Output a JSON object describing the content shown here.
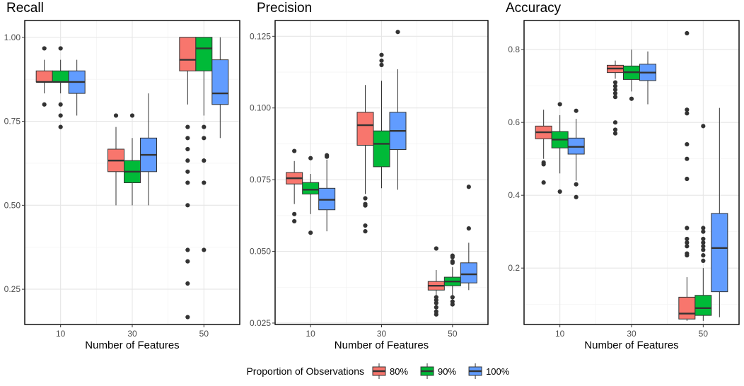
{
  "chart_data": [
    {
      "type": "box",
      "title": "Recall",
      "xlabel": "Number of Features",
      "ylabel": "",
      "categories": [
        "10",
        "30",
        "50"
      ],
      "ylim": [
        0.145,
        1.05
      ],
      "yticks": [
        0.25,
        0.5,
        0.75,
        1.0
      ],
      "ytick_labels": [
        "0.25",
        "0.50",
        "0.75",
        "1.00"
      ],
      "groups": [
        [
          {
            "series": "80%",
            "lower": 0.833,
            "q1": 0.867,
            "median": 0.867,
            "q3": 0.9,
            "upper": 0.933,
            "outliers": [
              0.967,
              0.8
            ]
          },
          {
            "series": "90%",
            "lower": 0.833,
            "q1": 0.867,
            "median": 0.867,
            "q3": 0.9,
            "upper": 0.933,
            "outliers": [
              0.967,
              0.8,
              0.767,
              0.733
            ]
          },
          {
            "series": "100%",
            "lower": 0.767,
            "q1": 0.833,
            "median": 0.867,
            "q3": 0.9,
            "upper": 0.933,
            "outliers": []
          }
        ],
        [
          {
            "series": "80%",
            "lower": 0.5,
            "q1": 0.6,
            "median": 0.633,
            "q3": 0.667,
            "upper": 0.733,
            "outliers": [
              0.767
            ]
          },
          {
            "series": "90%",
            "lower": 0.5,
            "q1": 0.567,
            "median": 0.6,
            "q3": 0.633,
            "upper": 0.7,
            "outliers": [
              0.767
            ]
          },
          {
            "series": "100%",
            "lower": 0.5,
            "q1": 0.6,
            "median": 0.65,
            "q3": 0.7,
            "upper": 0.833,
            "outliers": []
          }
        ],
        [
          {
            "series": "80%",
            "lower": 0.8,
            "q1": 0.9,
            "median": 0.933,
            "q3": 1.0,
            "upper": 1.0,
            "outliers": [
              0.733,
              0.7,
              0.667,
              0.633,
              0.6,
              0.567,
              0.5,
              0.367,
              0.333,
              0.267,
              0.167
            ]
          },
          {
            "series": "90%",
            "lower": 0.767,
            "q1": 0.9,
            "median": 0.967,
            "q3": 1.0,
            "upper": 1.0,
            "outliers": [
              0.733,
              0.7,
              0.633,
              0.567,
              0.367
            ]
          },
          {
            "series": "100%",
            "lower": 0.7,
            "q1": 0.8,
            "median": 0.833,
            "q3": 0.933,
            "upper": 1.0,
            "outliers": []
          }
        ]
      ]
    },
    {
      "type": "box",
      "title": "Precision",
      "xlabel": "Number of Features",
      "ylabel": "",
      "categories": [
        "10",
        "30",
        "50"
      ],
      "ylim": [
        0.0245,
        0.1305
      ],
      "yticks": [
        0.025,
        0.05,
        0.075,
        0.1,
        0.125
      ],
      "ytick_labels": [
        "0.025",
        "0.050",
        "0.075",
        "0.100",
        "0.125"
      ],
      "groups": [
        [
          {
            "series": "80%",
            "lower": 0.0665,
            "q1": 0.0735,
            "median": 0.0755,
            "q3": 0.0775,
            "upper": 0.0815,
            "outliers": [
              0.085,
              0.063,
              0.0605
            ]
          },
          {
            "series": "90%",
            "lower": 0.063,
            "q1": 0.07,
            "median": 0.0715,
            "q3": 0.074,
            "upper": 0.077,
            "outliers": [
              0.0825,
              0.0565
            ]
          },
          {
            "series": "100%",
            "lower": 0.057,
            "q1": 0.0645,
            "median": 0.068,
            "q3": 0.072,
            "upper": 0.082,
            "outliers": [
              0.0835,
              0.083
            ]
          }
        ],
        [
          {
            "series": "80%",
            "lower": 0.07,
            "q1": 0.087,
            "median": 0.094,
            "q3": 0.0985,
            "upper": 0.108,
            "outliers": [
              0.0685,
              0.0665,
              0.066,
              0.059,
              0.057
            ]
          },
          {
            "series": "90%",
            "lower": 0.072,
            "q1": 0.0795,
            "median": 0.0875,
            "q3": 0.092,
            "upper": 0.1095,
            "outliers": [
              0.1185,
              0.1165,
              0.115
            ]
          },
          {
            "series": "100%",
            "lower": 0.0715,
            "q1": 0.0855,
            "median": 0.092,
            "q3": 0.0985,
            "upper": 0.1135,
            "outliers": [
              0.1265
            ]
          }
        ],
        [
          {
            "series": "80%",
            "lower": 0.0345,
            "q1": 0.0365,
            "median": 0.038,
            "q3": 0.0395,
            "upper": 0.0435,
            "outliers": [
              0.051,
              0.034,
              0.033,
              0.032,
              0.0305,
              0.029,
              0.028
            ]
          },
          {
            "series": "90%",
            "lower": 0.0345,
            "q1": 0.038,
            "median": 0.0395,
            "q3": 0.041,
            "upper": 0.0445,
            "outliers": [
              0.0485,
              0.048,
              0.0465,
              0.046,
              0.034,
              0.0325,
              0.0315
            ]
          },
          {
            "series": "100%",
            "lower": 0.0365,
            "q1": 0.039,
            "median": 0.042,
            "q3": 0.046,
            "upper": 0.053,
            "outliers": [
              0.0725,
              0.058
            ]
          }
        ]
      ]
    },
    {
      "type": "box",
      "title": "Accuracy",
      "xlabel": "Number of Features",
      "ylabel": "",
      "categories": [
        "10",
        "30",
        "50"
      ],
      "ylim": [
        0.045,
        0.88
      ],
      "yticks": [
        0.2,
        0.4,
        0.6,
        0.8
      ],
      "ytick_labels": [
        "0.2",
        "0.4",
        "0.6",
        "0.8"
      ],
      "groups": [
        [
          {
            "series": "80%",
            "lower": 0.5,
            "q1": 0.555,
            "median": 0.573,
            "q3": 0.59,
            "upper": 0.635,
            "outliers": [
              0.49,
              0.485,
              0.435
            ]
          },
          {
            "series": "90%",
            "lower": 0.46,
            "q1": 0.53,
            "median": 0.553,
            "q3": 0.575,
            "upper": 0.62,
            "outliers": [
              0.65,
              0.41
            ]
          },
          {
            "series": "100%",
            "lower": 0.44,
            "q1": 0.513,
            "median": 0.533,
            "q3": 0.557,
            "upper": 0.61,
            "outliers": [
              0.632,
              0.43,
              0.395
            ]
          }
        ],
        [
          {
            "series": "80%",
            "lower": 0.72,
            "q1": 0.737,
            "median": 0.748,
            "q3": 0.757,
            "upper": 0.77,
            "outliers": [
              0.71,
              0.7,
              0.69,
              0.68,
              0.67,
              0.6,
              0.58,
              0.57
            ]
          },
          {
            "series": "90%",
            "lower": 0.685,
            "q1": 0.718,
            "median": 0.738,
            "q3": 0.755,
            "upper": 0.8,
            "outliers": [
              0.665
            ]
          },
          {
            "series": "100%",
            "lower": 0.65,
            "q1": 0.715,
            "median": 0.737,
            "q3": 0.76,
            "upper": 0.795,
            "outliers": []
          }
        ],
        [
          {
            "series": "80%",
            "lower": 0.055,
            "q1": 0.06,
            "median": 0.075,
            "q3": 0.12,
            "upper": 0.175,
            "outliers": [
              0.845,
              0.635,
              0.625,
              0.54,
              0.5,
              0.445,
              0.31,
              0.28,
              0.27,
              0.26,
              0.24,
              0.235
            ]
          },
          {
            "series": "90%",
            "lower": 0.055,
            "q1": 0.07,
            "median": 0.09,
            "q3": 0.125,
            "upper": 0.2,
            "outliers": [
              0.59,
              0.31,
              0.3,
              0.28,
              0.27,
              0.26,
              0.25,
              0.235,
              0.22
            ]
          },
          {
            "series": "100%",
            "lower": 0.065,
            "q1": 0.135,
            "median": 0.255,
            "q3": 0.35,
            "upper": 0.64,
            "outliers": []
          }
        ]
      ]
    }
  ],
  "legend": {
    "title": "Proportion of Observations",
    "items": [
      {
        "label": "80%",
        "color": "#F8766D"
      },
      {
        "label": "90%",
        "color": "#00BA38"
      },
      {
        "label": "100%",
        "color": "#619CFF"
      }
    ]
  }
}
